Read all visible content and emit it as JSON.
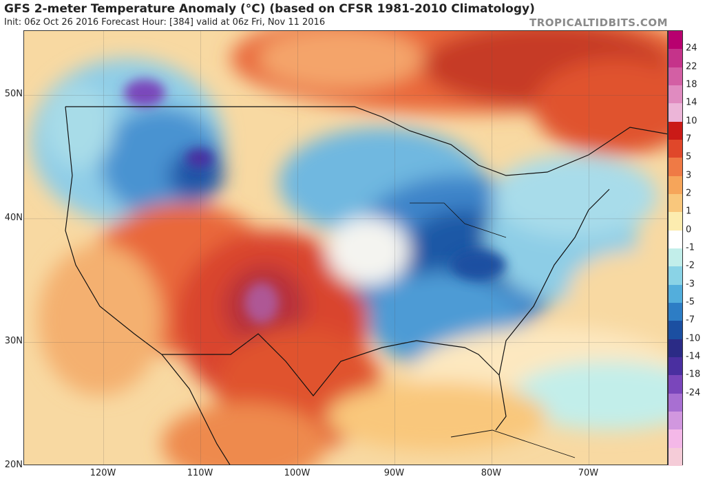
{
  "header": {
    "title": "GFS 2-meter Temperature Anomaly (°C) (based on CFSR 1981-2010 Climatology)",
    "subtitle": "Init: 06z Oct 26 2016   Forecast Hour: [384]   valid at 06z Fri, Nov 11 2016",
    "credit": "TROPICALTIDBITS.COM"
  },
  "map": {
    "lat_labels": [
      "50N",
      "40N",
      "30N",
      "20N"
    ],
    "lon_labels": [
      "120W",
      "110W",
      "100W",
      "90W",
      "80W",
      "70W"
    ],
    "extent": {
      "lon_min": -128.2,
      "lon_max": -61.8,
      "lat_min": 20,
      "lat_max": 55.2
    }
  },
  "colorbar": {
    "labels": [
      "24",
      "22",
      "18",
      "14",
      "10",
      "7",
      "5",
      "3",
      "2",
      "1",
      "0",
      "-1",
      "-2",
      "-3",
      "-5",
      "-7",
      "-10",
      "-14",
      "-18",
      "-24"
    ],
    "colors": [
      "#b8006f",
      "#c5338a",
      "#d35fa4",
      "#e08bc0",
      "#ecb5d8",
      "#ca1a17",
      "#e0472a",
      "#ef7a45",
      "#f6a55a",
      "#f9c77c",
      "#fcecaf",
      "#ffffff",
      "#c2eeea",
      "#8ad3e6",
      "#53aedc",
      "#2d7dc5",
      "#1b4fa1",
      "#2b2b86",
      "#4a2fa0",
      "#7a46bb",
      "#a86fd2",
      "#d197df",
      "#f4b8e8",
      "#f5ccd8"
    ]
  }
}
